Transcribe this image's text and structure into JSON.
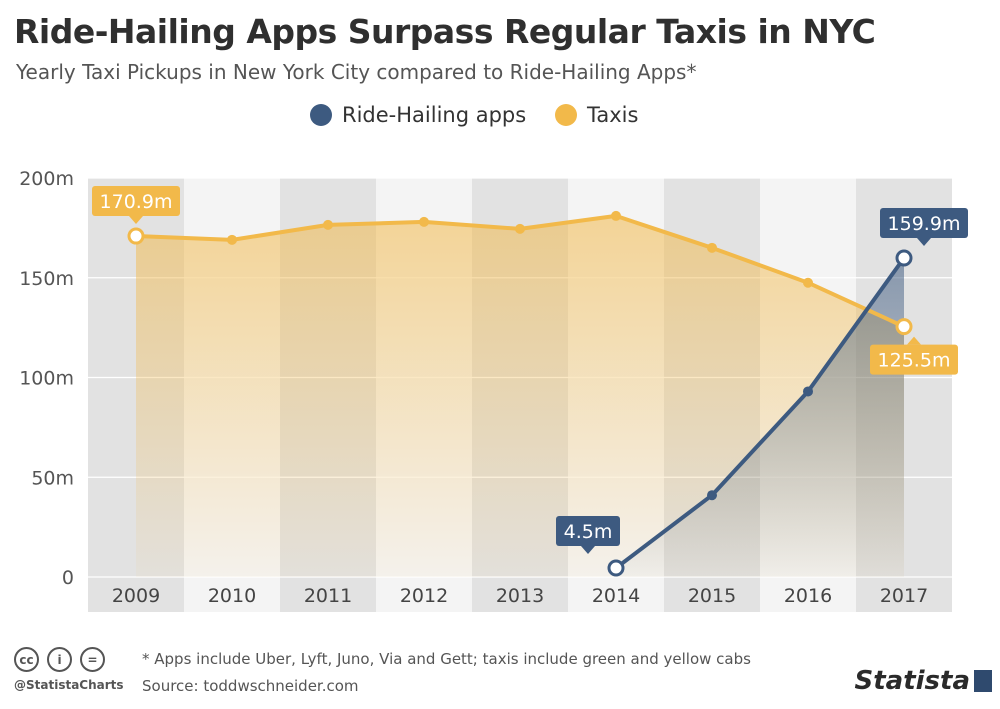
{
  "title": "Ride-Hailing Apps Surpass Regular Taxis in NYC",
  "subtitle": "Yearly Taxi Pickups in New York City compared to Ride-Hailing Apps*",
  "legend": [
    {
      "label": "Ride-Hailing apps",
      "color": "#3d5a80"
    },
    {
      "label": "Taxis",
      "color": "#f2b94a"
    }
  ],
  "footer": {
    "note": "* Apps include Uber, Lyft, Juno, Via and Gett; taxis include green and yellow cabs",
    "source": "Source: toddwschneider.com",
    "handle": "@StatistaCharts",
    "cc_icons": [
      "cc-icon",
      "attribution-icon",
      "noderivs-icon"
    ],
    "cc_glyphs": [
      "cc",
      "i",
      "="
    ],
    "logo": "Statista"
  },
  "chart_data": {
    "type": "line",
    "categories": [
      "2009",
      "2010",
      "2011",
      "2012",
      "2013",
      "2014",
      "2015",
      "2016",
      "2017"
    ],
    "series": [
      {
        "name": "Ride-Hailing apps",
        "color": "#3d5a80",
        "values": [
          null,
          null,
          null,
          null,
          null,
          4.5,
          41,
          93,
          159.9
        ],
        "labels": {
          "2014": "4.5m",
          "2017": "159.9m"
        }
      },
      {
        "name": "Taxis",
        "color": "#f2b94a",
        "values": [
          170.9,
          169,
          176.5,
          178,
          174.5,
          181,
          165,
          147.5,
          125.5
        ],
        "labels": {
          "2009": "170.9m",
          "2017": "125.5m"
        }
      }
    ],
    "ylim": [
      0,
      200
    ],
    "yticks": [
      0,
      50,
      100,
      150,
      200
    ],
    "ytick_labels": [
      "0",
      "50m",
      "100m",
      "150m",
      "200m"
    ],
    "grid": true,
    "legend_position": "top-center"
  }
}
